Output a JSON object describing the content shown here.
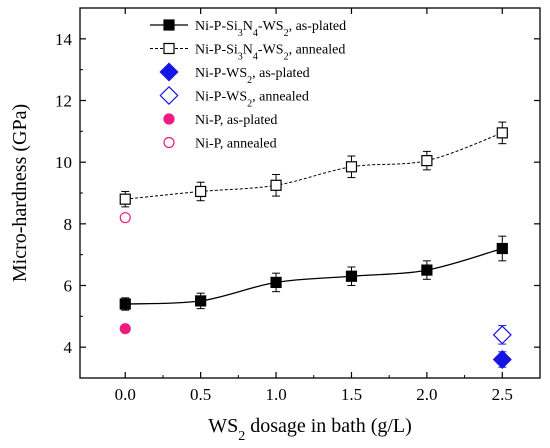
{
  "chart_data": {
    "type": "line",
    "xlabel": "WS2 dosage in bath (g/L)",
    "xlabel_parts": [
      {
        "text": "WS"
      },
      {
        "text": "2",
        "sub": true
      },
      {
        "text": " dosage in bath (g/L)"
      }
    ],
    "ylabel": "Micro-hardness (GPa)",
    "xlim": [
      -0.3,
      2.75
    ],
    "ylim": [
      3.0,
      15.0
    ],
    "xticks": [
      0.0,
      0.5,
      1.0,
      1.5,
      2.0,
      2.5
    ],
    "xtick_labels": [
      "0.0",
      "0.5",
      "1.0",
      "1.5",
      "2.0",
      "2.5"
    ],
    "yticks": [
      4,
      6,
      8,
      10,
      12,
      14
    ],
    "ytick_labels": [
      "4",
      "6",
      "8",
      "10",
      "12",
      "14"
    ],
    "legend_position": "top-left",
    "series": [
      {
        "name": "Ni-P-Si3N4-WS2, as-plated",
        "legend_parts": [
          {
            "text": "Ni-P-Si"
          },
          {
            "text": "3",
            "sub": true
          },
          {
            "text": "N"
          },
          {
            "text": "4",
            "sub": true
          },
          {
            "text": "-WS"
          },
          {
            "text": "2",
            "sub": true
          },
          {
            "text": ", as-plated"
          }
        ],
        "x": [
          0.0,
          0.5,
          1.0,
          1.5,
          2.0,
          2.5
        ],
        "y": [
          5.4,
          5.5,
          6.1,
          6.3,
          6.5,
          7.2
        ],
        "err": [
          0.2,
          0.25,
          0.3,
          0.3,
          0.3,
          0.4
        ],
        "marker": "square",
        "filled": true,
        "color": "#000000",
        "line": "solid"
      },
      {
        "name": "Ni-P-Si3N4-WS2, annealed",
        "legend_parts": [
          {
            "text": "Ni-P-Si"
          },
          {
            "text": "3",
            "sub": true
          },
          {
            "text": "N"
          },
          {
            "text": "4",
            "sub": true
          },
          {
            "text": "-WS"
          },
          {
            "text": "2",
            "sub": true
          },
          {
            "text": ", annealed"
          }
        ],
        "x": [
          0.0,
          0.5,
          1.0,
          1.5,
          2.0,
          2.5
        ],
        "y": [
          8.8,
          9.05,
          9.25,
          9.85,
          10.05,
          10.95
        ],
        "err": [
          0.25,
          0.3,
          0.35,
          0.35,
          0.3,
          0.35
        ],
        "marker": "square",
        "filled": false,
        "color": "#000000",
        "line": "dashed"
      },
      {
        "name": "Ni-P-WS2, as-plated",
        "legend_parts": [
          {
            "text": "Ni-P-WS"
          },
          {
            "text": "2",
            "sub": true
          },
          {
            "text": ", as-plated"
          }
        ],
        "x": [
          2.5
        ],
        "y": [
          3.6
        ],
        "err": [
          0.25
        ],
        "marker": "diamond",
        "filled": true,
        "color": "#1515e6",
        "line": "none"
      },
      {
        "name": "Ni-P-WS2, annealed",
        "legend_parts": [
          {
            "text": "Ni-P-WS"
          },
          {
            "text": "2",
            "sub": true
          },
          {
            "text": ", annealed"
          }
        ],
        "x": [
          2.5
        ],
        "y": [
          4.4
        ],
        "err": [
          0.3
        ],
        "marker": "diamond",
        "filled": false,
        "color": "#1515e6",
        "line": "none"
      },
      {
        "name": "Ni-P, as-plated",
        "legend_parts": [
          {
            "text": "Ni-P, as-plated"
          }
        ],
        "x": [
          0.0
        ],
        "y": [
          4.6
        ],
        "err": [
          0.1
        ],
        "marker": "circle",
        "filled": true,
        "color": "#ee1c80",
        "line": "none"
      },
      {
        "name": "Ni-P, annealed",
        "legend_parts": [
          {
            "text": "Ni-P, annealed"
          }
        ],
        "x": [
          0.0
        ],
        "y": [
          8.2
        ],
        "err": [
          0.1
        ],
        "marker": "circle",
        "filled": false,
        "color": "#ee1c80",
        "line": "none"
      }
    ]
  }
}
